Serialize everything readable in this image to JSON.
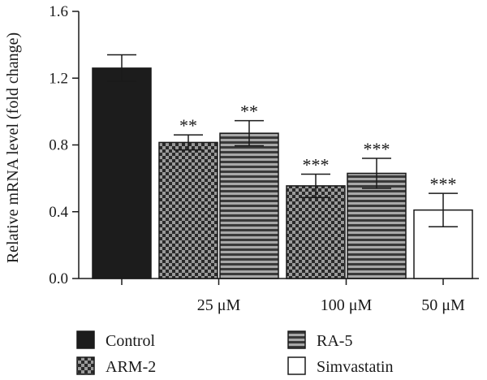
{
  "chart_data": {
    "type": "bar",
    "ylabel": "Relative mRNA level (fold change)",
    "ylim": [
      0,
      1.6
    ],
    "yticks": [
      "0.0",
      "0.4",
      "0.8",
      "1.2",
      "1.6"
    ],
    "grid": false,
    "legend_position": "bottom",
    "groups": [
      {
        "label": "",
        "bars": [
          {
            "series": "Control",
            "value": 1.26,
            "err": 0.08,
            "sig": ""
          }
        ]
      },
      {
        "label": "25 μM",
        "bars": [
          {
            "series": "ARM-2",
            "value": 0.815,
            "err": 0.045,
            "sig": "**"
          },
          {
            "series": "RA-5",
            "value": 0.87,
            "err": 0.075,
            "sig": "**"
          }
        ]
      },
      {
        "label": "100 μM",
        "bars": [
          {
            "series": "ARM-2",
            "value": 0.555,
            "err": 0.07,
            "sig": "***"
          },
          {
            "series": "RA-5",
            "value": 0.63,
            "err": 0.09,
            "sig": "***"
          }
        ]
      },
      {
        "label": "50 μM",
        "bars": [
          {
            "series": "Simvastatin",
            "value": 0.41,
            "err": 0.1,
            "sig": "***"
          }
        ]
      }
    ],
    "legend": [
      {
        "name": "Control",
        "fill": "solid-black"
      },
      {
        "name": "RA-5",
        "fill": "horizontal-stripes"
      },
      {
        "name": "ARM-2",
        "fill": "checkerboard"
      },
      {
        "name": "Simvastatin",
        "fill": "white"
      }
    ]
  },
  "colors": {
    "solid": "#1c1c1c",
    "checker_dark": "#2a2a2a",
    "checker_light": "#9a9a9a",
    "stripe_dark": "#3a3a3a",
    "stripe_light": "#a8a8a8",
    "axis": "#1a1a1a"
  }
}
